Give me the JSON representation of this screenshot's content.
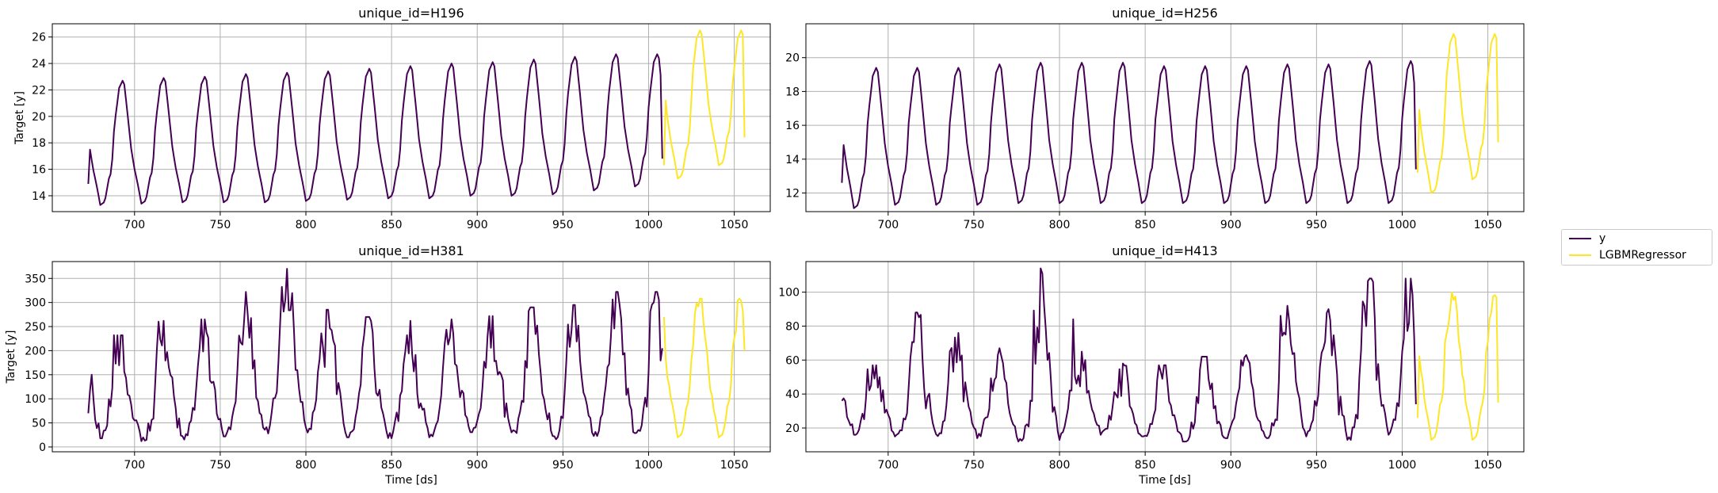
{
  "figure": {
    "colors": {
      "y": "#440154",
      "forecast": "#fde725",
      "grid": "#b0b0b0",
      "axis": "#000000"
    },
    "legend_placement": "center-right",
    "legend": [
      {
        "key": "y",
        "label": "y",
        "color": "#440154"
      },
      {
        "key": "forecast",
        "label": "LGBMRegressor",
        "color": "#fde725"
      }
    ]
  },
  "chart_data": [
    {
      "type": "line",
      "title": "unique_id=H196",
      "xlabel": "",
      "ylabel": "Target [y]",
      "grid": true,
      "xlim": [
        652,
        1071
      ],
      "ylim": [
        12.8,
        27.0
      ],
      "xticks": [
        700,
        750,
        800,
        850,
        900,
        950,
        1000,
        1050
      ],
      "yticks": [
        14,
        16,
        18,
        20,
        22,
        24,
        26
      ],
      "series": [
        {
          "name": "y",
          "x_start": 673,
          "x_step": 1,
          "daily_min": [
            13.3,
            13.4,
            13.5,
            13.5,
            13.5,
            13.6,
            13.7,
            13.8,
            13.8,
            14.0,
            14.0,
            14.1,
            14.4,
            14.7
          ],
          "daily_max": [
            22.6,
            22.7,
            22.9,
            23.0,
            23.2,
            23.3,
            23.4,
            23.6,
            23.8,
            24.0,
            24.1,
            24.3,
            24.5,
            24.7
          ],
          "start_value": 14.9,
          "end_value": 16.8
        },
        {
          "name": "LGBMRegressor",
          "x_start": 1009,
          "x_end": 1056,
          "peaks": [
            25.4,
            26.5
          ],
          "troughs": [
            15.3,
            16.3
          ],
          "start_value": 16.3,
          "end_value": 18.4
        }
      ]
    },
    {
      "type": "line",
      "title": "unique_id=H256",
      "xlabel": "",
      "ylabel": "",
      "grid": true,
      "xlim": [
        652,
        1071
      ],
      "ylim": [
        10.9,
        22.0
      ],
      "xticks": [
        700,
        750,
        800,
        850,
        900,
        950,
        1000,
        1050
      ],
      "yticks": [
        12,
        14,
        16,
        18,
        20
      ],
      "series": [
        {
          "name": "y",
          "x_start": 673,
          "x_step": 1,
          "daily_min": [
            11.1,
            11.3,
            11.3,
            11.3,
            11.4,
            11.4,
            11.4,
            11.4,
            11.4,
            11.4,
            11.4,
            11.4,
            11.4,
            11.4
          ],
          "daily_max": [
            19.4,
            19.4,
            19.4,
            19.4,
            19.6,
            19.7,
            19.7,
            19.7,
            19.5,
            19.5,
            19.5,
            19.6,
            19.6,
            19.8
          ],
          "start_value": 12.6,
          "end_value": 13.4
        },
        {
          "name": "LGBMRegressor",
          "x_start": 1009,
          "x_end": 1056,
          "peaks": [
            20.4,
            21.4
          ],
          "troughs": [
            12.0,
            12.8
          ],
          "start_value": 13.2,
          "end_value": 15.0
        }
      ]
    },
    {
      "type": "line",
      "title": "unique_id=H381",
      "xlabel": "Time [ds]",
      "ylabel": "Target [y]",
      "grid": true,
      "xlim": [
        652,
        1071
      ],
      "ylim": [
        -10,
        385
      ],
      "xticks": [
        700,
        750,
        800,
        850,
        900,
        950,
        1000,
        1050
      ],
      "yticks": [
        0,
        50,
        100,
        150,
        200,
        250,
        300,
        350
      ],
      "series": [
        {
          "name": "y",
          "x_start": 673,
          "x_step": 1,
          "daily_min": [
            18,
            12,
            15,
            22,
            28,
            30,
            20,
            18,
            20,
            28,
            25,
            12,
            20,
            22
          ],
          "daily_max": [
            295,
            232,
            262,
            265,
            322,
            370,
            285,
            270,
            262,
            265,
            272,
            290,
            295,
            322
          ],
          "start_value": 70,
          "end_value": 205
        },
        {
          "name": "LGBMRegressor",
          "x_start": 1009,
          "x_end": 1056,
          "peaks": [
            305,
            308
          ],
          "troughs": [
            20,
            20
          ],
          "start_value": 270,
          "end_value": 200
        }
      ]
    },
    {
      "type": "line",
      "title": "unique_id=H413",
      "xlabel": "Time [ds]",
      "ylabel": "",
      "grid": true,
      "xlim": [
        652,
        1071
      ],
      "ylim": [
        6,
        118
      ],
      "xticks": [
        700,
        750,
        800,
        850,
        900,
        950,
        1000,
        1050
      ],
      "yticks": [
        20,
        40,
        60,
        80,
        100
      ],
      "series": [
        {
          "name": "y",
          "x_start": 673,
          "x_step": 1,
          "daily_min": [
            16,
            15,
            14,
            14,
            12,
            13,
            16,
            14,
            12,
            14,
            14,
            15,
            13,
            16
          ],
          "daily_max": [
            71,
            57,
            88,
            76,
            67,
            114,
            65,
            58,
            57,
            62,
            63,
            92,
            90,
            108
          ],
          "start_value": 36,
          "end_value": 34
        },
        {
          "name": "LGBMRegressor",
          "x_start": 1009,
          "x_end": 1056,
          "peaks": [
            102,
            100
          ],
          "troughs": [
            13,
            13
          ],
          "start_value": 26,
          "end_value": 35
        }
      ]
    }
  ]
}
